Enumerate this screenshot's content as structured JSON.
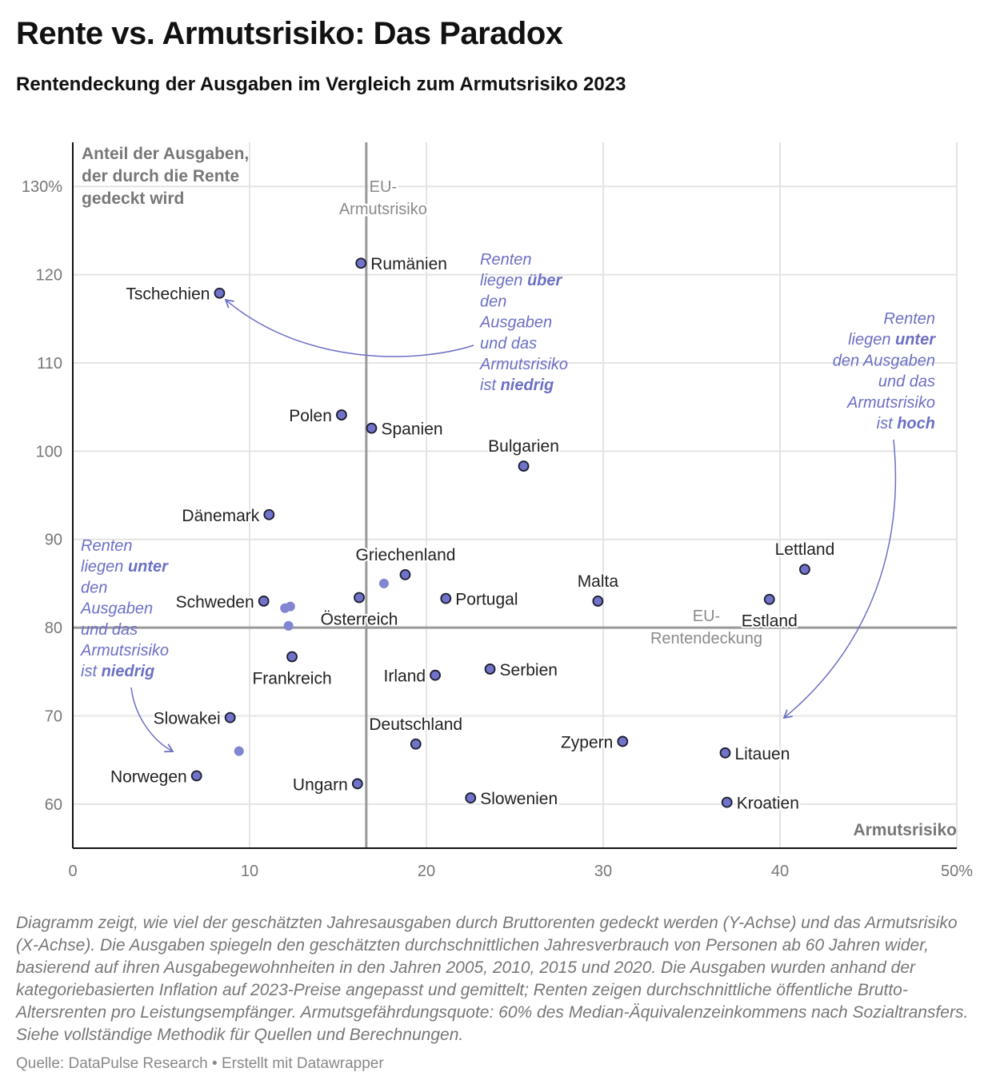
{
  "header": {
    "title": "Rente vs. Armutsrisiko: Das Paradox",
    "subtitle": "Rentendeckung der Ausgaben im Vergleich zum Armutsrisiko 2023"
  },
  "chart_data": {
    "type": "scatter",
    "title": "Rente vs. Armutsrisiko: Das Paradox",
    "xlabel": "Armutsrisiko",
    "ylabel_lines": [
      "Anteil der Ausgaben,",
      "der durch die Rente",
      "gedeckt wird"
    ],
    "xlim": [
      0,
      50
    ],
    "ylim": [
      55,
      135
    ],
    "x_ticks": [
      {
        "v": 0,
        "label": "0"
      },
      {
        "v": 10,
        "label": "10"
      },
      {
        "v": 20,
        "label": "20"
      },
      {
        "v": 30,
        "label": "30"
      },
      {
        "v": 40,
        "label": "40"
      },
      {
        "v": 50,
        "label": "50%"
      }
    ],
    "y_ticks": [
      {
        "v": 60,
        "label": "60"
      },
      {
        "v": 70,
        "label": "70"
      },
      {
        "v": 80,
        "label": "80"
      },
      {
        "v": 90,
        "label": "90"
      },
      {
        "v": 100,
        "label": "100"
      },
      {
        "v": 110,
        "label": "110"
      },
      {
        "v": 120,
        "label": "120"
      },
      {
        "v": 130,
        "label": "130%"
      }
    ],
    "grid": true,
    "reference_lines": {
      "x": {
        "value": 16.6,
        "label_lines": [
          "EU-",
          "Armutsrisiko"
        ]
      },
      "y": {
        "value": 80,
        "label_lines": [
          "EU-",
          "Rentendeckung"
        ]
      }
    },
    "points": [
      {
        "name": "Tschechien",
        "x": 8.3,
        "y": 117.9,
        "label": "left"
      },
      {
        "name": "Rumänien",
        "x": 16.3,
        "y": 121.3,
        "label": "right"
      },
      {
        "name": "Polen",
        "x": 15.2,
        "y": 104.1,
        "label": "left"
      },
      {
        "name": "Spanien",
        "x": 16.9,
        "y": 102.6,
        "label": "right"
      },
      {
        "name": "Bulgarien",
        "x": 25.5,
        "y": 98.3,
        "label": "above"
      },
      {
        "name": "Dänemark",
        "x": 11.1,
        "y": 92.8,
        "label": "left"
      },
      {
        "name": "Griechenland",
        "x": 18.8,
        "y": 86.0,
        "label": "above-left"
      },
      {
        "name": "",
        "x": 17.6,
        "y": 85.0,
        "label": "none",
        "muted": true
      },
      {
        "name": "Schweden",
        "x": 10.8,
        "y": 83.0,
        "label": "left"
      },
      {
        "name": "",
        "x": 12.3,
        "y": 82.4,
        "label": "none",
        "muted": true
      },
      {
        "name": "",
        "x": 12.0,
        "y": 82.2,
        "label": "none",
        "muted": true
      },
      {
        "name": "",
        "x": 12.2,
        "y": 80.2,
        "label": "none",
        "muted": true
      },
      {
        "name": "Österreich",
        "x": 16.2,
        "y": 83.4,
        "label": "below"
      },
      {
        "name": "Portugal",
        "x": 21.1,
        "y": 83.3,
        "label": "right"
      },
      {
        "name": "Malta",
        "x": 29.7,
        "y": 83.0,
        "label": "above"
      },
      {
        "name": "Lettland",
        "x": 41.4,
        "y": 86.6,
        "label": "above"
      },
      {
        "name": "Estland",
        "x": 39.4,
        "y": 83.2,
        "label": "below"
      },
      {
        "name": "Frankreich",
        "x": 12.4,
        "y": 76.7,
        "label": "below"
      },
      {
        "name": "Irland",
        "x": 20.5,
        "y": 74.6,
        "label": "left"
      },
      {
        "name": "Serbien",
        "x": 23.6,
        "y": 75.3,
        "label": "right"
      },
      {
        "name": "Slowakei",
        "x": 8.9,
        "y": 69.8,
        "label": "left"
      },
      {
        "name": "",
        "x": 9.4,
        "y": 66.0,
        "label": "none",
        "muted": true
      },
      {
        "name": "Norwegen",
        "x": 7.0,
        "y": 63.2,
        "label": "left"
      },
      {
        "name": "Deutschland",
        "x": 19.4,
        "y": 66.8,
        "label": "above"
      },
      {
        "name": "Zypern",
        "x": 31.1,
        "y": 67.1,
        "label": "left"
      },
      {
        "name": "Litauen",
        "x": 36.9,
        "y": 65.8,
        "label": "right"
      },
      {
        "name": "Ungarn",
        "x": 16.1,
        "y": 62.3,
        "label": "left"
      },
      {
        "name": "Slowenien",
        "x": 22.5,
        "y": 60.7,
        "label": "right"
      },
      {
        "name": "Kroatien",
        "x": 37.0,
        "y": 60.2,
        "label": "right"
      }
    ],
    "annotations": [
      {
        "id": "top-center",
        "align": "start",
        "lines": [
          [
            "Renten",
            ""
          ],
          [
            "liegen ",
            "über"
          ],
          [
            "den",
            ""
          ],
          [
            "Ausgaben",
            ""
          ],
          [
            "und das",
            ""
          ],
          [
            "Armutsrisiko",
            ""
          ],
          [
            "ist ",
            "niedrig"
          ]
        ]
      },
      {
        "id": "right",
        "align": "end",
        "lines": [
          [
            "Renten",
            ""
          ],
          [
            "liegen ",
            "unter"
          ],
          [
            "den Ausgaben",
            ""
          ],
          [
            "und das",
            ""
          ],
          [
            "Armutsrisiko",
            ""
          ],
          [
            "ist ",
            "hoch"
          ]
        ]
      },
      {
        "id": "left",
        "align": "start",
        "lines": [
          [
            "Renten",
            ""
          ],
          [
            "liegen ",
            "unter"
          ],
          [
            "den",
            ""
          ],
          [
            "Ausgaben",
            ""
          ],
          [
            "und das",
            ""
          ],
          [
            "Armutsrisiko",
            ""
          ],
          [
            "ist ",
            "niedrig"
          ]
        ]
      }
    ],
    "colors": {
      "dot": "#7073c9",
      "dot_muted": "#8185d2",
      "dot_stroke": "#1c1c2e",
      "annotation": "#6c70c4",
      "reference": "#999999",
      "grid": "#e4e4e4"
    }
  },
  "footer": {
    "notes": "Diagramm zeigt, wie viel der geschätzten Jahresausgaben durch Bruttorenten gedeckt werden (Y-Achse) und das Armutsrisiko (X-Achse). Die Ausgaben spiegeln den geschätzten durchschnittlichen Jahresverbrauch von Personen ab 60 Jahren wider, basierend auf ihren Ausgabegewohnheiten in den Jahren 2005, 2010, 2015 und 2020. Die Ausgaben wurden anhand der kategoriebasierten Inflation auf 2023-Preise angepasst und gemittelt; Renten zeigen durchschnittliche öffentliche Brutto-Altersrenten pro Leistungsempfänger. Armutsgefährdungsquote: 60% des Median-Äquivalenzeinkommens nach Sozialtransfers. Siehe vollständige Methodik für Quellen und Berechnungen.",
    "source": "Quelle: DataPulse Research • Erstellt mit Datawrapper"
  }
}
